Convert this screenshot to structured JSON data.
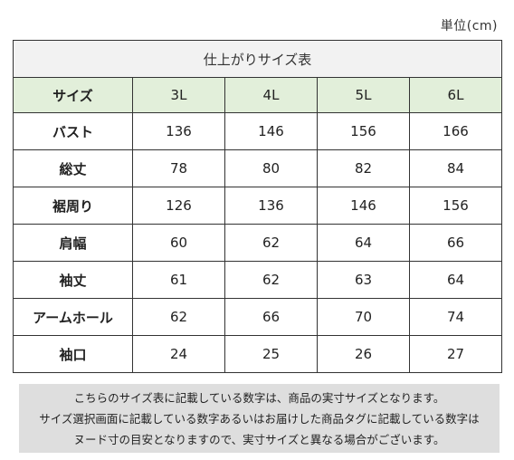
{
  "unit_label": "単位(cm)",
  "table": {
    "caption": "仕上がりサイズ表",
    "header_label": "サイズ",
    "sizes": [
      "3L",
      "4L",
      "5L",
      "6L"
    ],
    "rows": [
      {
        "label": "バスト",
        "values": [
          "136",
          "146",
          "156",
          "166"
        ]
      },
      {
        "label": "総丈",
        "values": [
          "78",
          "80",
          "82",
          "84"
        ]
      },
      {
        "label": "裾周り",
        "values": [
          "126",
          "136",
          "146",
          "156"
        ]
      },
      {
        "label": "肩幅",
        "values": [
          "60",
          "62",
          "64",
          "66"
        ]
      },
      {
        "label": "袖丈",
        "values": [
          "61",
          "62",
          "63",
          "64"
        ]
      },
      {
        "label": "アームホール",
        "values": [
          "62",
          "66",
          "70",
          "74"
        ]
      },
      {
        "label": "袖口",
        "values": [
          "24",
          "25",
          "26",
          "27"
        ]
      }
    ]
  },
  "note": {
    "lines": [
      "こちらのサイズ表に記載している数字は、商品の実寸サイズとなります。",
      "サイズ選択画面に記載している数字あるいはお届けした商品タグに記載している数字は",
      "ヌード寸の目安となりますので、実寸サイズと異なる場合がございます。"
    ]
  }
}
